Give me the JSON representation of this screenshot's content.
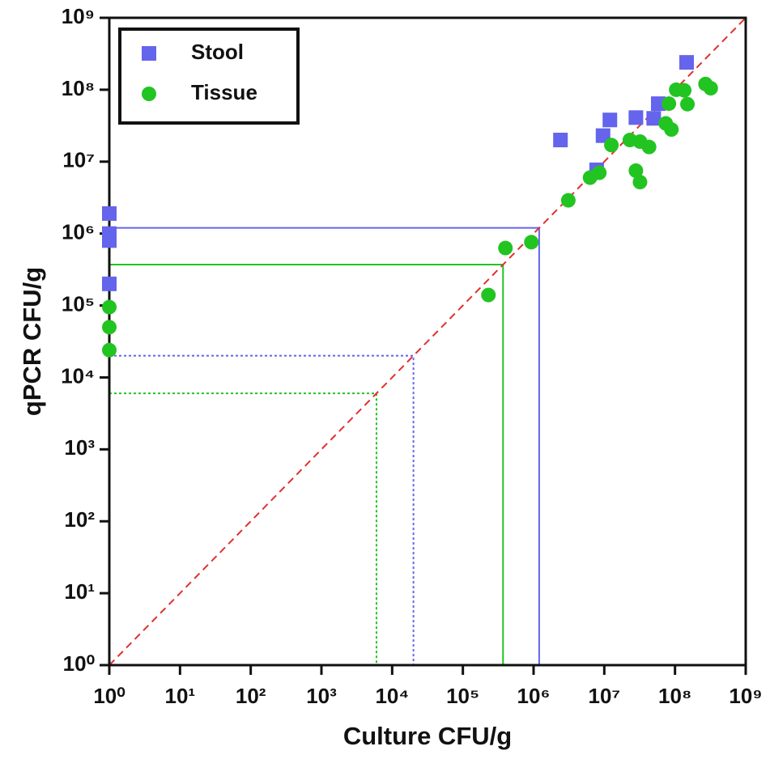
{
  "chart_data": {
    "type": "scatter",
    "x_label": "Culture CFU/g",
    "y_label": "qPCR CFU/g",
    "log_x": true,
    "log_y": true,
    "xlim": [
      1,
      1000000000
    ],
    "ylim": [
      1,
      1000000000
    ],
    "xticks": [
      {
        "value": 1,
        "label": "10⁰"
      },
      {
        "value": 10,
        "label": "10¹"
      },
      {
        "value": 100,
        "label": "10²"
      },
      {
        "value": 1000,
        "label": "10³"
      },
      {
        "value": 10000,
        "label": "10⁴"
      },
      {
        "value": 100000,
        "label": "10⁵"
      },
      {
        "value": 1000000,
        "label": "10⁶"
      },
      {
        "value": 10000000,
        "label": "10⁷"
      },
      {
        "value": 100000000,
        "label": "10⁸"
      },
      {
        "value": 1000000000,
        "label": "10⁹"
      }
    ],
    "yticks": [
      {
        "value": 1,
        "label": "10⁰"
      },
      {
        "value": 10,
        "label": "10¹"
      },
      {
        "value": 100,
        "label": "10²"
      },
      {
        "value": 1000,
        "label": "10³"
      },
      {
        "value": 10000,
        "label": "10⁴"
      },
      {
        "value": 100000,
        "label": "10⁵"
      },
      {
        "value": 1000000,
        "label": "10⁶"
      },
      {
        "value": 10000000,
        "label": "10⁷"
      },
      {
        "value": 100000000,
        "label": "10⁸"
      },
      {
        "value": 1000000000,
        "label": "10⁹"
      }
    ],
    "legend_position": "upper left",
    "series": [
      {
        "name": "Stool",
        "color": "#6464ec",
        "marker": "square",
        "x": [
          1,
          1,
          1,
          1,
          2400000,
          7800000,
          9600000,
          12000000,
          28000000,
          50000000,
          58000000,
          146000000
        ],
        "values": [
          1900000,
          1000000,
          800000,
          200000,
          20000000,
          7700000,
          23000000,
          38000000,
          41000000,
          40000000,
          64000000,
          240000000
        ]
      },
      {
        "name": "Tissue",
        "color": "#22c422",
        "marker": "circle",
        "x": [
          1,
          1,
          1,
          230000,
          400000,
          930000,
          3100000,
          6300000,
          8500000,
          12600000,
          23000000,
          28000000,
          32000000,
          32000000,
          43000000,
          74000000,
          89000000,
          82000000,
          104000000,
          135000000,
          150000000,
          270000000,
          320000000
        ],
        "values": [
          95000,
          50000,
          24000,
          140000,
          630000,
          760000,
          2900000,
          6000000,
          7000000,
          17000000,
          20000000,
          7500000,
          5200000,
          19000000,
          16000000,
          34000000,
          28000000,
          64000000,
          100000000,
          98000000,
          63000000,
          120000000,
          105000000
        ]
      }
    ],
    "identity_line": {
      "color": "#e03030",
      "style": "dashed"
    },
    "reference_lines": [
      {
        "value": 1200000,
        "color": "#6464ec",
        "style": "solid"
      },
      {
        "value": 370000,
        "color": "#22c422",
        "style": "solid"
      },
      {
        "value": 20000,
        "color": "#6464ec",
        "style": "dotted"
      },
      {
        "value": 6000,
        "color": "#22c422",
        "style": "dotted"
      }
    ]
  }
}
